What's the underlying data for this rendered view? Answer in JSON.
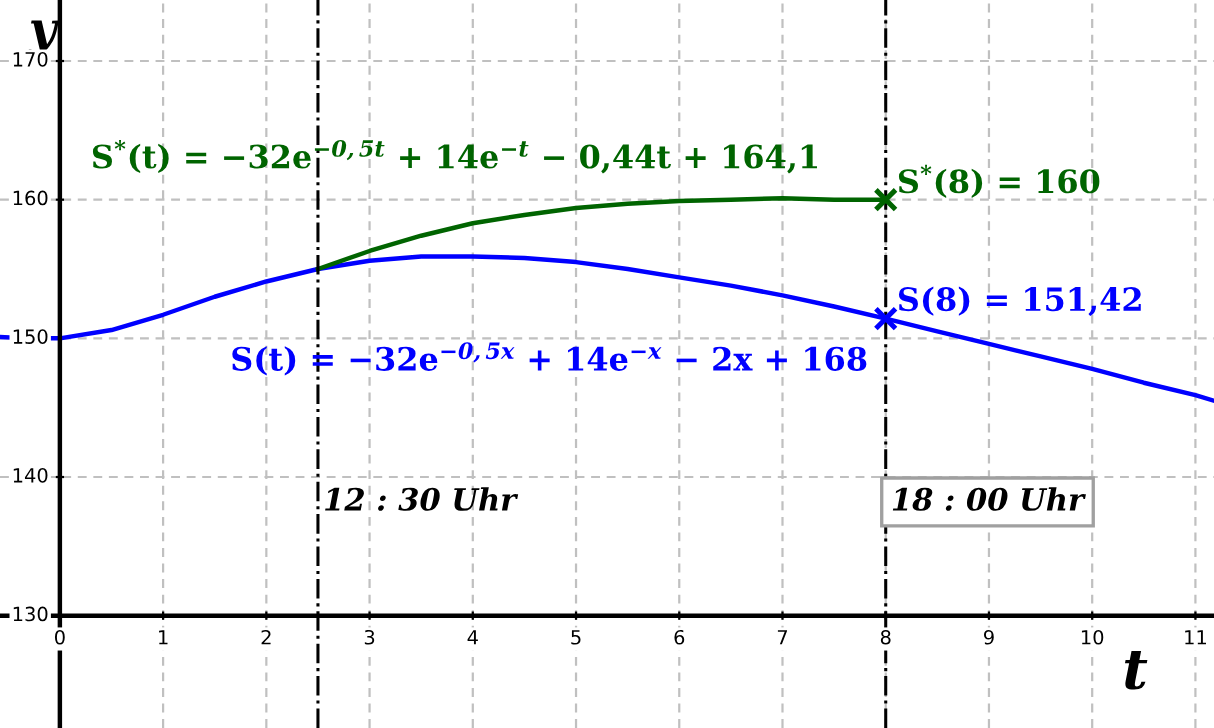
{
  "chart_data": {
    "type": "line",
    "xlabel": "t",
    "ylabel": "y",
    "xlim": [
      -0.58,
      11.18
    ],
    "ylim": [
      121.9,
      174.4
    ],
    "xticks": [
      0,
      1,
      2,
      3,
      4,
      5,
      6,
      7,
      8,
      9,
      10,
      11
    ],
    "yticks": [
      130,
      140,
      150,
      160,
      170
    ],
    "grid": true,
    "series": [
      {
        "color": "#0000ff",
        "x": [
          -0.58,
          -0.3,
          0,
          0.5,
          1,
          1.5,
          2,
          2.5,
          3,
          3.5,
          4,
          4.5,
          5,
          5.5,
          6,
          6.5,
          7,
          7.5,
          8,
          8.5,
          9,
          9.5,
          10,
          10.5,
          11,
          11.18
        ],
        "values": [
          150.1,
          150.0,
          150.0,
          150.6,
          151.7,
          153.0,
          154.1,
          155.0,
          155.6,
          155.9,
          155.9,
          155.8,
          155.5,
          155.0,
          154.4,
          153.8,
          153.1,
          152.3,
          151.42,
          150.5,
          149.6,
          148.7,
          147.8,
          146.8,
          145.9,
          145.5
        ]
      },
      {
        "color": "#006400",
        "x": [
          2.5,
          3,
          3.5,
          4,
          4.5,
          5,
          5.5,
          6,
          6.5,
          7,
          7.5,
          8
        ],
        "values": [
          155.0,
          156.3,
          157.4,
          158.3,
          158.9,
          159.4,
          159.7,
          159.9,
          160.0,
          160.1,
          160.0,
          160.0
        ]
      },
      {
        "type": "scatter",
        "marker": "cross",
        "x": [
          8,
          8
        ],
        "values": [
          160,
          151.42
        ],
        "colors": [
          "#006400",
          "#0000ff"
        ]
      }
    ],
    "ref_lines": [
      {
        "axis": "x",
        "value": 2.5,
        "color": "#000000"
      },
      {
        "axis": "x",
        "value": 8,
        "color": "#000000"
      }
    ],
    "annotations": [
      "S$^{*}$(t) = −32e$^{−0,5t}$ + 14e$^{−t}$ − 0,44t + 164,1",
      "S(t) = −32e$^{−0,5x}$ + 14e$^{−x}$ − 2x + 168",
      "12 : 30 Uhr",
      "18 : 00 Uhr",
      {
        "text": "S$^{*}$(8) = 160",
        "x": 8,
        "y": 160
      },
      {
        "text": "S(8) = 151,42",
        "x": 8,
        "y": 151.42
      }
    ]
  }
}
